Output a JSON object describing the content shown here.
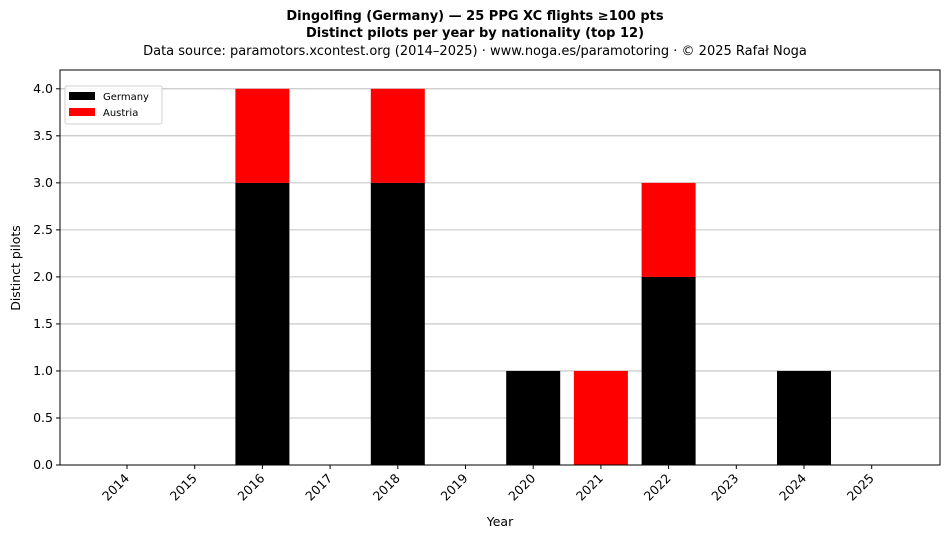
{
  "chart_data": {
    "type": "bar",
    "stacked": true,
    "title_line1": "Dingolfing (Germany)  —  25 PPG XC flights ≥100 pts",
    "title_line2": "Distinct pilots per year by nationality (top 12)",
    "subtitle": "Data source: paramotors.xcontest.org (2014–2025)  ·  www.noga.es/paramotoring  ·  © 2025 Rafał Noga",
    "xlabel": "Year",
    "ylabel": "Distinct pilots",
    "categories": [
      "2014",
      "2015",
      "2016",
      "2017",
      "2018",
      "2019",
      "2020",
      "2021",
      "2022",
      "2023",
      "2024",
      "2025"
    ],
    "series": [
      {
        "name": "Germany",
        "color": "#000000",
        "values": [
          0,
          0,
          3,
          0,
          3,
          0,
          1,
          0,
          2,
          0,
          1,
          0
        ]
      },
      {
        "name": "Austria",
        "color": "#ff0000",
        "values": [
          0,
          0,
          1,
          0,
          1,
          0,
          0,
          1,
          1,
          0,
          0,
          0
        ]
      }
    ],
    "ylim": [
      0,
      4.2
    ],
    "yticks": [
      "0.0",
      "0.5",
      "1.0",
      "1.5",
      "2.0",
      "2.5",
      "3.0",
      "3.5",
      "4.0"
    ],
    "grid": "y",
    "legend_position": "top-left"
  }
}
